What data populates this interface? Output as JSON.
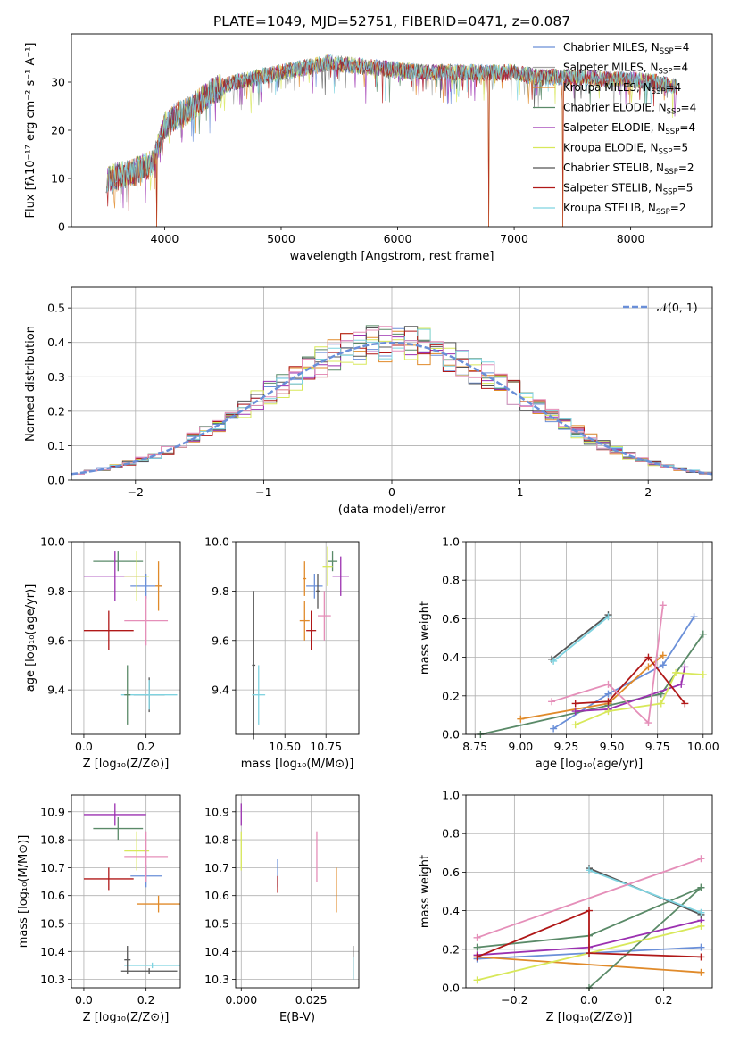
{
  "figure_title": "PLATE=1049, MJD=52751, FIBERID=0471, z=0.087",
  "colors": {
    "Chabrier MILES": "#6a8fd8",
    "Salpeter MILES": "#a3a3a3",
    "Kroupa MILES": "#e08a2a",
    "Chabrier ELODIE": "#5a8a68",
    "Salpeter ELODIE": "#9b30b0",
    "Kroupa ELODIE": "#d8e85a",
    "Chabrier STELIB": "#555555",
    "Salpeter STELIB": "#b01818",
    "Kroupa STELIB": "#7fd3e0",
    "pink": "#e58fb9"
  },
  "chart_data": [
    {
      "id": "spectrum",
      "type": "line",
      "xlabel": "wavelength [Angstrom, rest frame]",
      "ylabel": "Flux [fλ10⁻¹⁷ erg cm⁻² s⁻¹ A⁻¹]",
      "xlim": [
        3200,
        8700
      ],
      "ylim": [
        0,
        40
      ],
      "xticks": [
        4000,
        5000,
        6000,
        7000,
        8000
      ],
      "yticks": [
        0,
        10,
        20,
        30
      ],
      "grid": false,
      "legend": "right",
      "legend_entries": [
        {
          "label": "Chabrier MILES, N",
          "sub": "SSP",
          "tail": "=4",
          "color": "#6a8fd8"
        },
        {
          "label": "Salpeter MILES, N",
          "sub": "SSP",
          "tail": "=4",
          "color": "#a3a3a3"
        },
        {
          "label": "Kroupa MILES, N",
          "sub": "SSP",
          "tail": "=4",
          "color": "#e08a2a"
        },
        {
          "label": "Chabrier ELODIE, N",
          "sub": "SSP",
          "tail": "=4",
          "color": "#5a8a68"
        },
        {
          "label": "Salpeter ELODIE, N",
          "sub": "SSP",
          "tail": "=4",
          "color": "#9b30b0"
        },
        {
          "label": "Kroupa ELODIE, N",
          "sub": "SSP",
          "tail": "=5",
          "color": "#d8e85a"
        },
        {
          "label": "Chabrier STELIB, N",
          "sub": "SSP",
          "tail": "=2",
          "color": "#555555"
        },
        {
          "label": "Salpeter STELIB, N",
          "sub": "SSP",
          "tail": "=5",
          "color": "#b01818"
        },
        {
          "label": "Kroupa STELIB, N",
          "sub": "SSP",
          "tail": "=2",
          "color": "#7fd3e0"
        }
      ],
      "envelope": {
        "x": [
          3500,
          3700,
          3900,
          4000,
          4100,
          4200,
          4300,
          4400,
          4500,
          4600,
          4800,
          5000,
          5200,
          5400,
          5600,
          5800,
          6000,
          6200,
          6400,
          6600,
          6800,
          7000,
          7200,
          7400,
          7600,
          7800,
          8000,
          8200,
          8400
        ],
        "y": [
          10,
          11,
          13,
          21,
          23,
          24,
          26,
          28,
          29,
          30,
          31,
          32,
          33,
          34,
          33.5,
          33,
          32.5,
          32,
          32,
          32,
          32,
          32,
          31,
          31,
          31,
          30.5,
          30.5,
          30,
          29
        ]
      },
      "dips": [
        {
          "x": 3930,
          "y": 0
        },
        {
          "x": 6780,
          "y": 0
        },
        {
          "x": 7420,
          "y": 0
        }
      ]
    },
    {
      "id": "residuals",
      "type": "histogram",
      "xlabel": "(data-model)/error",
      "ylabel": "Normed distribution",
      "xlim": [
        -2.5,
        2.5
      ],
      "ylim": [
        0,
        0.56
      ],
      "xticks": [
        -2,
        -1,
        0,
        1,
        2
      ],
      "xtick_labels": [
        "−2",
        "−1",
        "0",
        "1",
        "2"
      ],
      "yticks": [
        0.0,
        0.1,
        0.2,
        0.3,
        0.4,
        0.5
      ],
      "ytick_labels": [
        "0.0",
        "0.1",
        "0.2",
        "0.3",
        "0.4",
        "0.5"
      ],
      "grid": true,
      "bin_width": 0.1,
      "reference_curve": {
        "label": "𝒩(0, 1)",
        "color": "#6a8fd8",
        "style": "dashed"
      },
      "legend": "top-right"
    },
    {
      "id": "age_vs_Z",
      "type": "errorbar",
      "xlabel": "Z [log₁₀(Z/Z⊙)]",
      "ylabel": "age  [log₁₀(age/yr)]",
      "xlim": [
        -0.04,
        0.31
      ],
      "ylim": [
        9.22,
        10.0
      ],
      "xticks": [
        0.0,
        0.2
      ],
      "xtick_labels": [
        "0.0",
        "0.2"
      ],
      "yticks": [
        9.4,
        9.6,
        9.8,
        10.0
      ],
      "ytick_labels": [
        "9.4",
        "9.6",
        "9.8",
        "10.0"
      ],
      "grid": true,
      "points": [
        {
          "c": "#6a8fd8",
          "x": 0.2,
          "xerr": 0.05,
          "y": 9.82,
          "yerr": 0.05
        },
        {
          "c": "#e08a2a",
          "x": 0.24,
          "xerr": 0.01,
          "y": 9.82,
          "yerr": 0.1
        },
        {
          "c": "#5a8a68",
          "x": 0.11,
          "xerr": 0.08,
          "y": 9.92,
          "yerr": 0.04
        },
        {
          "c": "#9b30b0",
          "x": 0.1,
          "xerr": 0.1,
          "y": 9.86,
          "yerr": 0.1
        },
        {
          "c": "#d8e85a",
          "x": 0.17,
          "xerr": 0.04,
          "y": 9.86,
          "yerr": 0.1
        },
        {
          "c": "#555555",
          "x": 0.21,
          "xerr": 0.05,
          "y": 9.38,
          "yerr": 0.07
        },
        {
          "c": "#b01818",
          "x": 0.08,
          "xerr": 0.08,
          "y": 9.64,
          "yerr": 0.08
        },
        {
          "c": "#7fd3e0",
          "x": 0.21,
          "xerr": 0.09,
          "y": 9.38,
          "yerr": 0.06
        },
        {
          "c": "#e58fb9",
          "x": 0.2,
          "xerr": 0.07,
          "y": 9.68,
          "yerr": 0.1
        },
        {
          "c": "#5a8a68",
          "x": 0.14,
          "xerr": 0.01,
          "y": 9.38,
          "yerr": 0.12
        }
      ]
    },
    {
      "id": "age_vs_mass",
      "type": "errorbar",
      "xlabel": "mass [log₁₀(M/M⊙)]",
      "ylabel": "",
      "xlim": [
        10.2,
        10.95
      ],
      "ylim": [
        9.22,
        10.0
      ],
      "xticks": [
        10.5,
        10.75
      ],
      "xtick_labels": [
        "10.50",
        "10.75"
      ],
      "yticks": [
        9.4,
        9.6,
        9.8,
        10.0
      ],
      "ytick_labels": [
        "9.4",
        "9.6",
        "9.8",
        "10.0"
      ],
      "grid": true,
      "points": [
        {
          "c": "#6a8fd8",
          "x": 10.68,
          "xerr": 0.05,
          "y": 9.82,
          "yerr": 0.05
        },
        {
          "c": "#e08a2a",
          "x": 10.62,
          "xerr": 0.03,
          "y": 9.68,
          "yerr": 0.08
        },
        {
          "c": "#e08a2a",
          "x": 10.62,
          "xerr": 0.01,
          "y": 9.85,
          "yerr": 0.07
        },
        {
          "c": "#5a8a68",
          "x": 10.79,
          "xerr": 0.03,
          "y": 9.92,
          "yerr": 0.04
        },
        {
          "c": "#9b30b0",
          "x": 10.84,
          "xerr": 0.05,
          "y": 9.86,
          "yerr": 0.08
        },
        {
          "c": "#d8e85a",
          "x": 10.76,
          "xerr": 0.03,
          "y": 9.9,
          "yerr": 0.08
        },
        {
          "c": "#555555",
          "x": 10.31,
          "xerr": 0.01,
          "y": 9.5,
          "yerr": 0.3
        },
        {
          "c": "#b01818",
          "x": 10.66,
          "xerr": 0.03,
          "y": 9.64,
          "yerr": 0.08
        },
        {
          "c": "#7fd3e0",
          "x": 10.34,
          "xerr": 0.04,
          "y": 9.38,
          "yerr": 0.12
        },
        {
          "c": "#e58fb9",
          "x": 10.74,
          "xerr": 0.04,
          "y": 9.7,
          "yerr": 0.1
        },
        {
          "c": "#555555",
          "x": 10.7,
          "xerr": 0.01,
          "y": 9.8,
          "yerr": 0.07
        }
      ]
    },
    {
      "id": "mass_weight_vs_age",
      "type": "line",
      "xlabel": "age  [log₁₀(age/yr)]",
      "ylabel": "mass weight",
      "xlim": [
        8.7,
        10.05
      ],
      "ylim": [
        0,
        1.0
      ],
      "xticks": [
        8.75,
        9.0,
        9.25,
        9.5,
        9.75,
        10.0
      ],
      "xtick_labels": [
        "8.75",
        "9.00",
        "9.25",
        "9.50",
        "9.75",
        "10.00"
      ],
      "yticks": [
        0.0,
        0.2,
        0.4,
        0.6,
        0.8,
        1.0
      ],
      "ytick_labels": [
        "0.0",
        "0.2",
        "0.4",
        "0.6",
        "0.8",
        "1.0"
      ],
      "grid": true,
      "series": [
        {
          "c": "#6a8fd8",
          "x": [
            9.18,
            9.48,
            9.78,
            9.95
          ],
          "y": [
            0.03,
            0.21,
            0.36,
            0.61
          ]
        },
        {
          "c": "#e08a2a",
          "x": [
            9.0,
            9.48,
            9.7,
            9.78
          ],
          "y": [
            0.08,
            0.16,
            0.35,
            0.41
          ]
        },
        {
          "c": "#5a8a68",
          "x": [
            8.78,
            9.48,
            9.77,
            10.0
          ],
          "y": [
            0.0,
            0.15,
            0.21,
            0.52
          ]
        },
        {
          "c": "#9b30b0",
          "x": [
            9.3,
            9.48,
            9.88,
            9.9
          ],
          "y": [
            0.12,
            0.13,
            0.26,
            0.35
          ]
        },
        {
          "c": "#d8e85a",
          "x": [
            9.3,
            9.48,
            9.77,
            9.85,
            10.0
          ],
          "y": [
            0.05,
            0.12,
            0.16,
            0.32,
            0.31
          ]
        },
        {
          "c": "#555555",
          "x": [
            9.17,
            9.48
          ],
          "y": [
            0.39,
            0.62
          ]
        },
        {
          "c": "#b01818",
          "x": [
            9.3,
            9.48,
            9.7,
            9.9
          ],
          "y": [
            0.16,
            0.17,
            0.4,
            0.16
          ]
        },
        {
          "c": "#7fd3e0",
          "x": [
            9.18,
            9.48
          ],
          "y": [
            0.38,
            0.61
          ]
        },
        {
          "c": "#e58fb9",
          "x": [
            9.17,
            9.48,
            9.7,
            9.78
          ],
          "y": [
            0.17,
            0.26,
            0.06,
            0.67
          ]
        }
      ]
    },
    {
      "id": "mass_vs_Z",
      "type": "errorbar",
      "xlabel": "Z [log₁₀(Z/Z⊙)]",
      "ylabel": "mass [log₁₀(M/M⊙)]",
      "xlim": [
        -0.04,
        0.31
      ],
      "ylim": [
        10.27,
        10.96
      ],
      "xticks": [
        0.0,
        0.2
      ],
      "xtick_labels": [
        "0.0",
        "0.2"
      ],
      "yticks": [
        10.3,
        10.4,
        10.5,
        10.6,
        10.7,
        10.8,
        10.9
      ],
      "ytick_labels": [
        "10.3",
        "10.4",
        "10.5",
        "10.6",
        "10.7",
        "10.8",
        "10.9"
      ],
      "grid": true,
      "points": [
        {
          "c": "#6a8fd8",
          "x": 0.2,
          "xerr": 0.05,
          "y": 10.67,
          "yerr": 0.04
        },
        {
          "c": "#e08a2a",
          "x": 0.24,
          "xerr": 0.07,
          "y": 10.57,
          "yerr": 0.03
        },
        {
          "c": "#5a8a68",
          "x": 0.11,
          "xerr": 0.08,
          "y": 10.84,
          "yerr": 0.04
        },
        {
          "c": "#9b30b0",
          "x": 0.1,
          "xerr": 0.1,
          "y": 10.89,
          "yerr": 0.04
        },
        {
          "c": "#d8e85a",
          "x": 0.17,
          "xerr": 0.04,
          "y": 10.76,
          "yerr": 0.07
        },
        {
          "c": "#555555",
          "x": 0.21,
          "xerr": 0.09,
          "y": 10.33,
          "yerr": 0.01
        },
        {
          "c": "#b01818",
          "x": 0.08,
          "xerr": 0.08,
          "y": 10.66,
          "yerr": 0.04
        },
        {
          "c": "#7fd3e0",
          "x": 0.22,
          "xerr": 0.09,
          "y": 10.35,
          "yerr": 0.01
        },
        {
          "c": "#e58fb9",
          "x": 0.2,
          "xerr": 0.07,
          "y": 10.74,
          "yerr": 0.09
        },
        {
          "c": "#555555",
          "x": 0.14,
          "xerr": 0.01,
          "y": 10.37,
          "yerr": 0.05
        }
      ]
    },
    {
      "id": "mass_vs_EBV",
      "type": "errorbar",
      "xlabel": "E(B-V)",
      "ylabel": "",
      "xlim": [
        -0.002,
        0.042
      ],
      "ylim": [
        10.27,
        10.96
      ],
      "xticks": [
        0.0,
        0.025
      ],
      "xtick_labels": [
        "0.000",
        "0.025"
      ],
      "yticks": [
        10.3,
        10.4,
        10.5,
        10.6,
        10.7,
        10.8,
        10.9
      ],
      "ytick_labels": [
        "10.3",
        "10.4",
        "10.5",
        "10.6",
        "10.7",
        "10.8",
        "10.9"
      ],
      "grid": true,
      "points": [
        {
          "c": "#9b30b0",
          "x": 0.0,
          "xerr": 0.0,
          "y": 10.89,
          "yerr": 0.04
        },
        {
          "c": "#d8e85a",
          "x": 0.0,
          "xerr": 0.0,
          "y": 10.76,
          "yerr": 0.07
        },
        {
          "c": "#6a8fd8",
          "x": 0.013,
          "xerr": 0.0,
          "y": 10.68,
          "yerr": 0.05
        },
        {
          "c": "#b01818",
          "x": 0.013,
          "xerr": 0.0,
          "y": 10.64,
          "yerr": 0.03
        },
        {
          "c": "#e58fb9",
          "x": 0.027,
          "xerr": 0.0,
          "y": 10.74,
          "yerr": 0.09
        },
        {
          "c": "#e08a2a",
          "x": 0.034,
          "xerr": 0.0,
          "y": 10.62,
          "yerr": 0.08
        },
        {
          "c": "#555555",
          "x": 0.04,
          "xerr": 0.0,
          "y": 10.36,
          "yerr": 0.06
        },
        {
          "c": "#7fd3e0",
          "x": 0.04,
          "xerr": 0.0,
          "y": 10.34,
          "yerr": 0.04
        }
      ]
    },
    {
      "id": "mass_weight_vs_Z",
      "type": "line",
      "xlabel": "Z [log₁₀(Z/Z⊙)]",
      "ylabel": "mass weight",
      "xlim": [
        -0.33,
        0.33
      ],
      "ylim": [
        0,
        1.0
      ],
      "xticks": [
        -0.2,
        0.0,
        0.2
      ],
      "xtick_labels": [
        "−0.2",
        "0.0",
        "0.2"
      ],
      "yticks": [
        0.0,
        0.2,
        0.4,
        0.6,
        0.8,
        1.0
      ],
      "ytick_labels": [
        "0.0",
        "0.2",
        "0.4",
        "0.6",
        "0.8",
        "1.0"
      ],
      "grid": true,
      "series": [
        {
          "c": "#6a8fd8",
          "x": [
            -0.3,
            0.0,
            0.3
          ],
          "y": [
            0.15,
            0.18,
            0.21
          ]
        },
        {
          "c": "#e08a2a",
          "x": [
            -0.3,
            0.3
          ],
          "y": [
            0.16,
            0.08
          ]
        },
        {
          "c": "#5a8a68",
          "x": [
            -0.3,
            0.0,
            0.3
          ],
          "y": [
            0.21,
            0.27,
            0.52
          ]
        },
        {
          "c": "#5a8a68",
          "x": [
            0.0,
            0.3
          ],
          "y": [
            0.0,
            0.52
          ]
        },
        {
          "c": "#9b30b0",
          "x": [
            -0.3,
            0.0,
            0.3
          ],
          "y": [
            0.17,
            0.21,
            0.35
          ]
        },
        {
          "c": "#d8e85a",
          "x": [
            -0.3,
            0.3
          ],
          "y": [
            0.04,
            0.32
          ]
        },
        {
          "c": "#555555",
          "x": [
            0.0,
            0.3
          ],
          "y": [
            0.62,
            0.38
          ]
        },
        {
          "c": "#b01818",
          "x": [
            -0.3,
            0.0,
            0.0,
            0.3
          ],
          "y": [
            0.16,
            0.4,
            0.18,
            0.16
          ]
        },
        {
          "c": "#7fd3e0",
          "x": [
            0.0,
            0.3
          ],
          "y": [
            0.61,
            0.39
          ]
        },
        {
          "c": "#e58fb9",
          "x": [
            -0.3,
            0.3
          ],
          "y": [
            0.26,
            0.67
          ]
        }
      ]
    }
  ]
}
